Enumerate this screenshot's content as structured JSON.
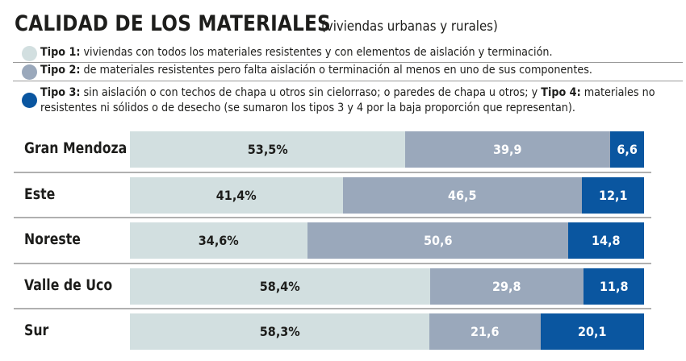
{
  "title": {
    "main": "CALIDAD DE LOS MATERIALES",
    "sub": "(viviendas urbanas y rurales)"
  },
  "colors": {
    "tipo1": "#d2dfe0",
    "tipo2": "#9aa8bb",
    "tipo3_4": "#0a56a0"
  },
  "legend": [
    {
      "key": "Tipo 1:",
      "text": " viviendas con todos los materiales resistentes y con elementos de aislación y terminación."
    },
    {
      "key": "Tipo 2:",
      "text": " de materiales resistentes pero falta aislación o terminación al menos en uno de sus componentes."
    },
    {
      "key": "Tipo 3:",
      "text": " sin aislación o con techos de chapa u otros sin cielorraso; o paredes de chapa u otros; y ",
      "key2": "Tipo 4:",
      "text2": " materiales no",
      "line2": "resistentes ni sólidos o de desecho (se sumaron los tipos 3 y 4 por la baja proporción que representan)."
    }
  ],
  "chart_data": {
    "type": "bar",
    "orientation": "horizontal",
    "stacked": true,
    "normalized": true,
    "title": "CALIDAD DE LOS MATERIALES (viviendas urbanas y rurales)",
    "xlabel": "",
    "ylabel": "",
    "xlim": [
      0,
      100
    ],
    "unit": "%",
    "grid": false,
    "legend_position": "top",
    "categories": [
      "Gran Mendoza",
      "Este",
      "Noreste",
      "Valle de Uco",
      "Sur"
    ],
    "series": [
      {
        "name": "Tipo 1",
        "color": "#d2dfe0",
        "values": [
          53.5,
          41.4,
          34.6,
          58.4,
          58.3
        ],
        "labels": [
          "53,5%",
          "41,4%",
          "34,6%",
          "58,4%",
          "58,3%"
        ]
      },
      {
        "name": "Tipo 2",
        "color": "#9aa8bb",
        "values": [
          39.9,
          46.5,
          50.6,
          29.8,
          21.6
        ],
        "labels": [
          "39,9",
          "46,5",
          "50,6",
          "29,8",
          "21,6"
        ]
      },
      {
        "name": "Tipo 3 y 4",
        "color": "#0a56a0",
        "values": [
          6.6,
          12.1,
          14.8,
          11.8,
          20.1
        ],
        "labels": [
          "6,6",
          "12,1",
          "14,8",
          "11,8",
          "20,1"
        ]
      }
    ]
  }
}
